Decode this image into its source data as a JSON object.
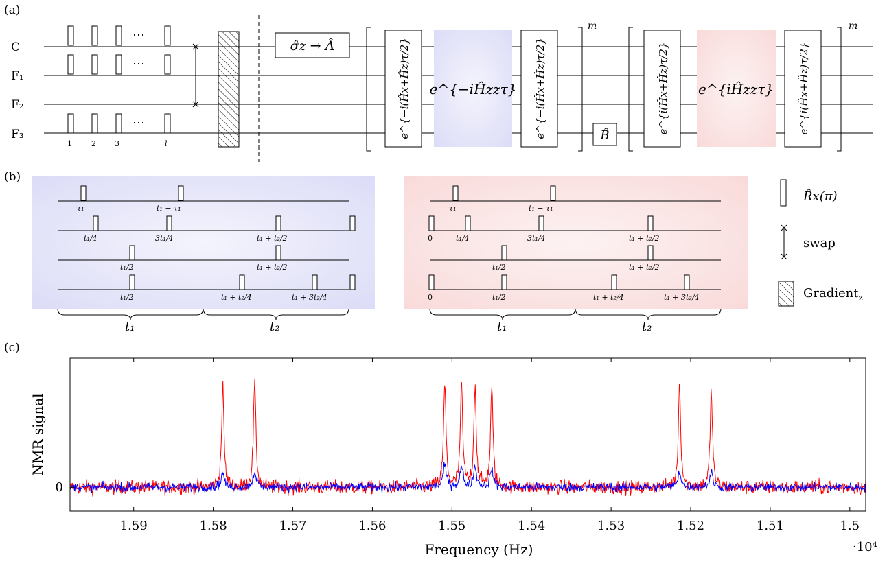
{
  "panel_a": {
    "label": "(a)",
    "qubits": [
      "C",
      "F₁",
      "F₂",
      "F₃"
    ],
    "pulse_indices": [
      "1",
      "2",
      "3",
      "l"
    ],
    "dots": "⋯",
    "box_sigma": "σ̂z → Â",
    "box_b": "B̂",
    "rot_xz_neg": "e^{−i(Ĥx+Ĥz)τ/2}",
    "block_zz_neg": "e^{−iĤzzτ}",
    "rot_xz_pos": "e^{i(Ĥx+Ĥz)τ/2}",
    "block_zz_pos": "e^{iĤzzτ}",
    "repeat": "m"
  },
  "panel_b": {
    "label": "(b)",
    "left_labels": {
      "r1": [
        "τ₁",
        "t₁ − τ₁"
      ],
      "r2": [
        "t₁/4",
        "3t₁/4",
        "t₁ + t₂/2"
      ],
      "r3": [
        "t₁/2",
        "t₁ + t₂/2"
      ],
      "r4": [
        "t₁/2",
        "t₁ + t₂/4",
        "t₁ + 3t₂/4"
      ]
    },
    "right_labels": {
      "r1": [
        "τ₁",
        "t₁ − τ₁"
      ],
      "r2": [
        "0",
        "t₁/4",
        "3t₁/4",
        "t₁ + t₂/2"
      ],
      "r3": [
        "t₁/2",
        "t₁ + t₂/2"
      ],
      "r4": [
        "0",
        "t₁/2",
        "t₁ + t₂/4",
        "t₁ + 3t₂/4"
      ]
    },
    "brace_t1": "t₁",
    "brace_t2": "t₂",
    "legend": {
      "rx": "R̂x(π)",
      "swap": "swap",
      "gradient": "Gradient"
    },
    "colors": {
      "blue_block": "#dfe0f8",
      "red_block": "#fbe2e2"
    }
  },
  "panel_c": {
    "label": "(c)",
    "chart_data": {
      "type": "line",
      "xlabel": "Frequency (Hz)",
      "ylabel": "NMR signal",
      "x_multiplier": "·10⁴",
      "xlim": [
        1.598,
        1.498
      ],
      "x_ticks": [
        "1.59",
        "1.58",
        "1.57",
        "1.56",
        "1.55",
        "1.54",
        "1.53",
        "1.52",
        "1.51",
        "1.5"
      ],
      "y_ticks": [
        "0"
      ],
      "ylim": [
        -1.2,
        6.5
      ],
      "peaks_x": [
        1.5788,
        1.5748,
        1.5509,
        1.5488,
        1.5471,
        1.545,
        1.5214,
        1.5174
      ],
      "series": [
        {
          "color": "#ff0000",
          "peak_heights": [
            5.0,
            5.3,
            5.2,
            5.1,
            5.1,
            5.0,
            5.2,
            4.8
          ],
          "noise": 0.35
        },
        {
          "color": "#0000ff",
          "peak_heights": [
            0.7,
            0.8,
            1.1,
            1.0,
            1.0,
            0.9,
            0.8,
            0.7
          ],
          "noise": 0.22
        }
      ]
    }
  }
}
